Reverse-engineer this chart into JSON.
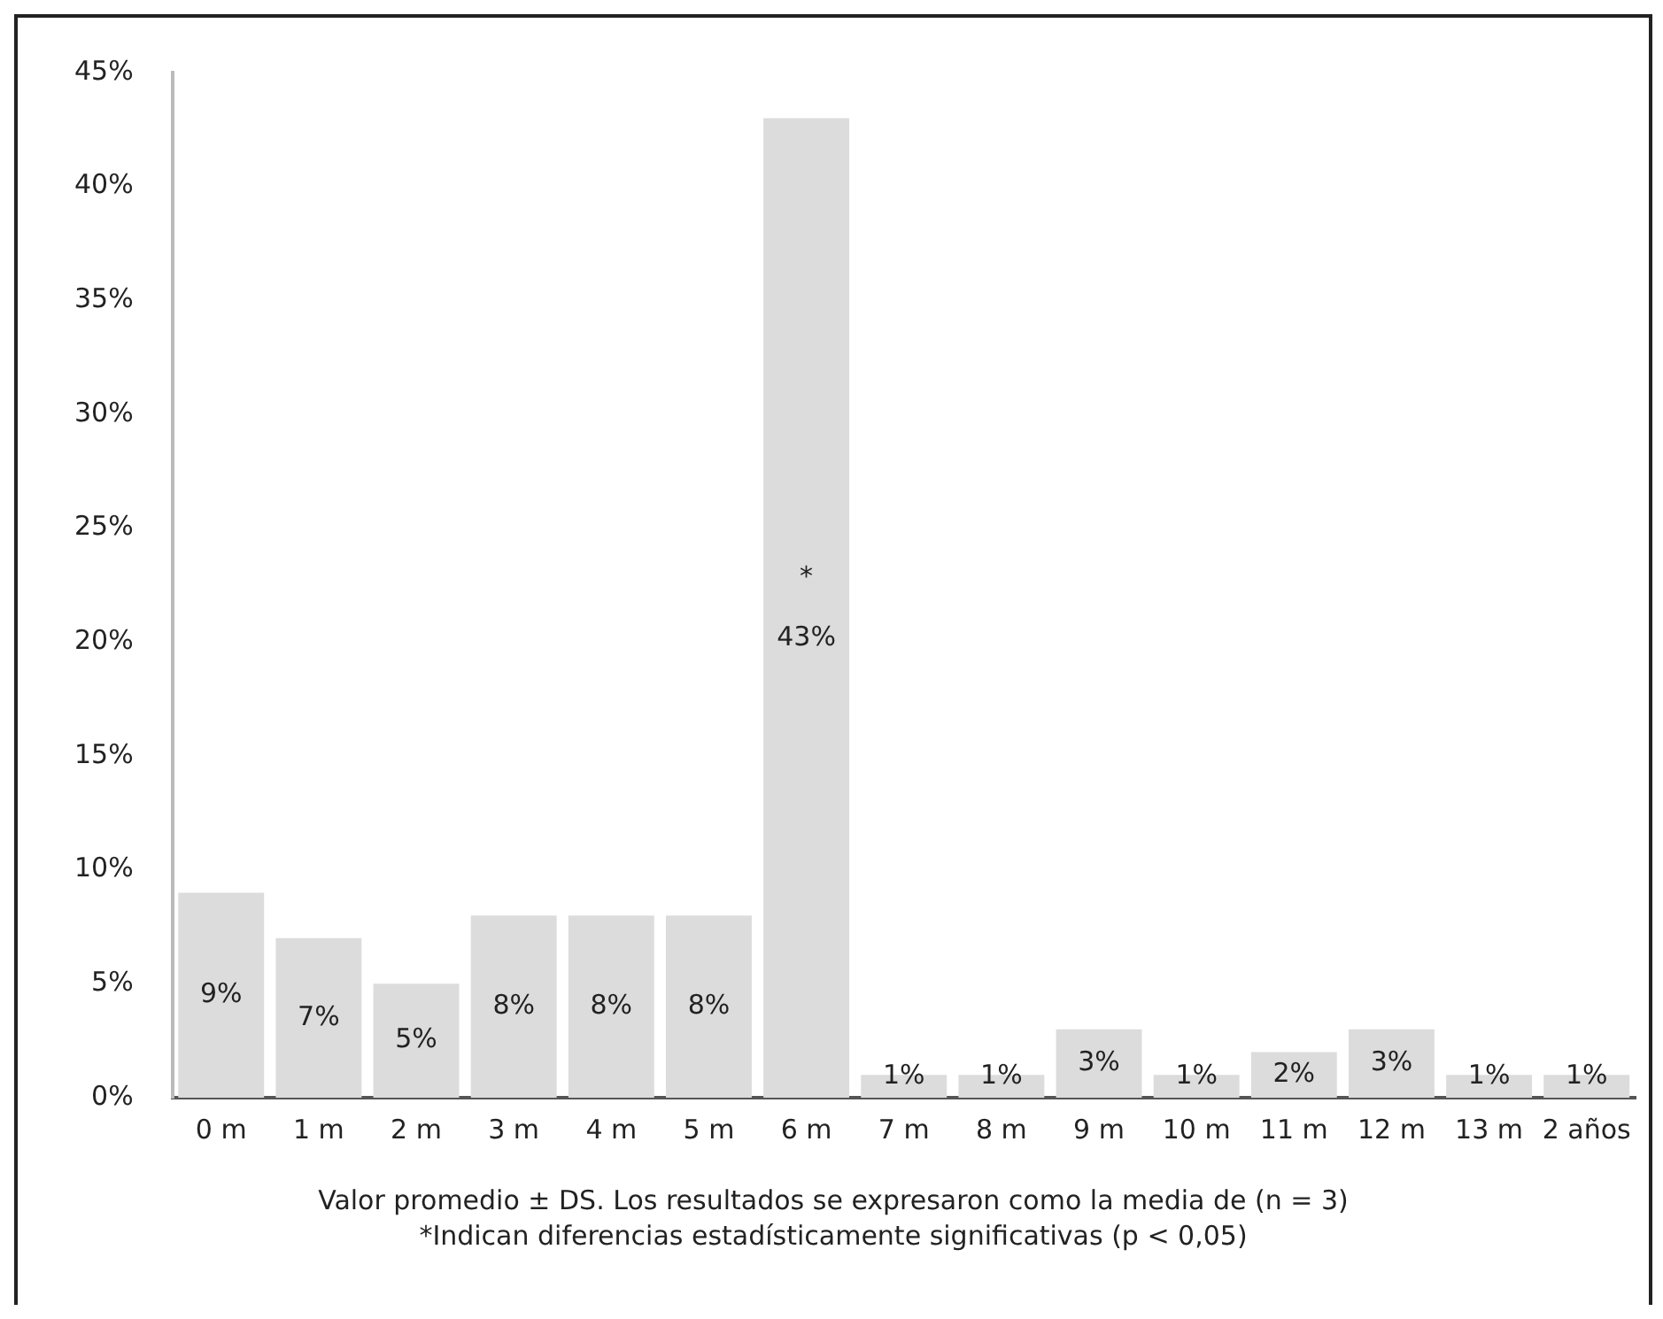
{
  "chart_data": {
    "type": "bar",
    "categories": [
      "0 m",
      "1 m",
      "2 m",
      "3 m",
      "4 m",
      "5 m",
      "6 m",
      "7 m",
      "8 m",
      "9 m",
      "10 m",
      "11 m",
      "12 m",
      "13 m",
      "2 años"
    ],
    "values": [
      9,
      7,
      5,
      8,
      8,
      8,
      43,
      1,
      1,
      3,
      1,
      2,
      3,
      1,
      1
    ],
    "value_labels": [
      "9%",
      "7%",
      "5%",
      "8%",
      "8%",
      "8%",
      "*\n43%",
      "1%",
      "1%",
      "3%",
      "1%",
      "2%",
      "3%",
      "1%",
      "1%"
    ],
    "color": "#dcdcdc",
    "ylim": [
      0,
      45
    ],
    "yticks": [
      {
        "value": 0,
        "label": "0%"
      },
      {
        "value": 5,
        "label": "5%"
      },
      {
        "value": 10,
        "label": "10%"
      },
      {
        "value": 15,
        "label": "15%"
      },
      {
        "value": 20,
        "label": "20%"
      },
      {
        "value": 25,
        "label": "25%"
      },
      {
        "value": 30,
        "label": "30%"
      },
      {
        "value": 35,
        "label": "35%"
      },
      {
        "value": 40,
        "label": "40%"
      },
      {
        "value": 45,
        "label": "45%"
      }
    ],
    "grid": false,
    "legend": false,
    "annotations": [
      "Valor promedio ± DS. Los resultados se expresaron como la media de (n = 3)",
      "*Indican diferencias estadísticamente significativas (p < 0,05)"
    ]
  }
}
